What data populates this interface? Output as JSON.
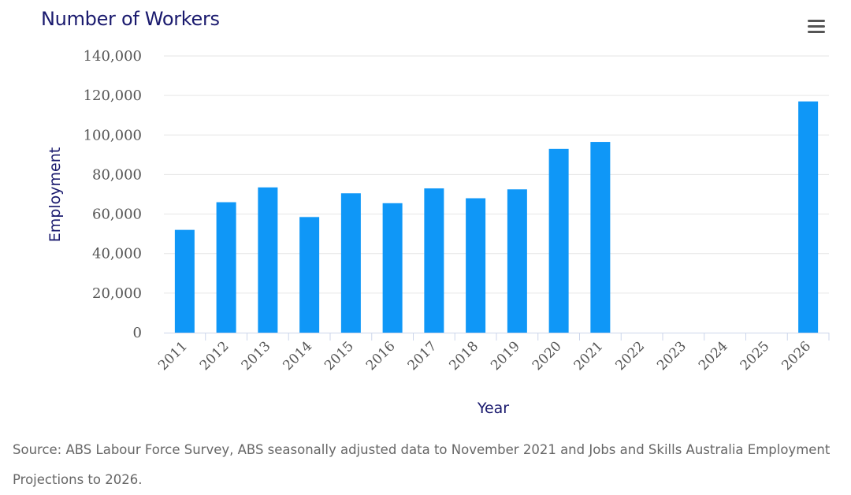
{
  "chart_data": {
    "type": "bar",
    "title": "Number of Workers",
    "xlabel": "Year",
    "ylabel": "Employment",
    "ylim": [
      0,
      140000
    ],
    "yticks": [
      "0",
      "20,000",
      "40,000",
      "60,000",
      "80,000",
      "100,000",
      "120,000",
      "140,000"
    ],
    "categories": [
      "2011",
      "2012",
      "2013",
      "2014",
      "2015",
      "2016",
      "2017",
      "2018",
      "2019",
      "2020",
      "2021",
      "2022",
      "2023",
      "2024",
      "2025",
      "2026"
    ],
    "series": [
      {
        "values": [
          52000,
          66000,
          73500,
          58500,
          70500,
          65500,
          73000,
          68000,
          72500,
          93000,
          96500,
          null,
          null,
          null,
          null,
          117000
        ]
      }
    ],
    "bar_color": "#0f97f7",
    "grid": true,
    "legend": "none"
  },
  "source_note": "Source: ABS Labour Force Survey, ABS seasonally adjusted data to November 2021 and Jobs and Skills Australia Employment Projections to 2026.",
  "menu": {
    "icon": "hamburger-menu-icon"
  }
}
